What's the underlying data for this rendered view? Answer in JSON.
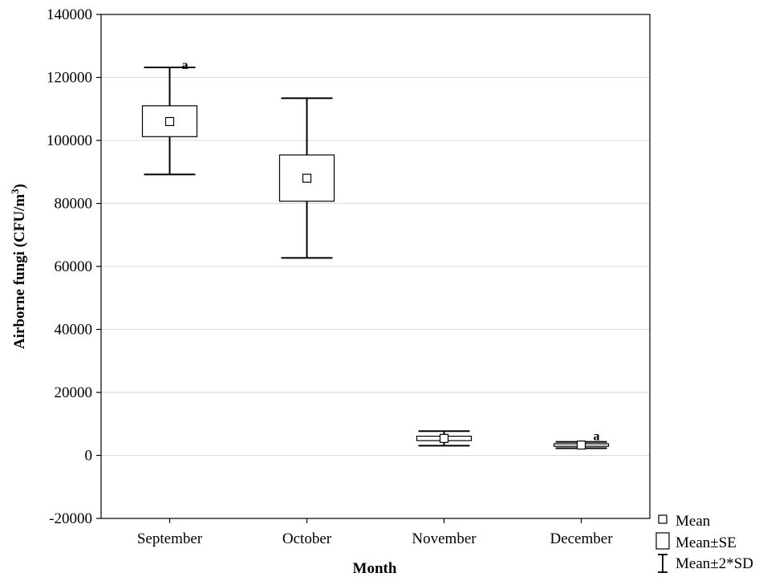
{
  "chart_data": {
    "type": "box",
    "xlabel": "Month",
    "ylabel": "Airborne fungi (CFU/m",
    "ylabel_sup": "3",
    "ylabel_end": ")",
    "ylim": [
      -20000,
      140000
    ],
    "yticks": [
      -20000,
      0,
      20000,
      40000,
      60000,
      80000,
      100000,
      120000,
      140000
    ],
    "ytick_labels": [
      "-20000",
      "0",
      "20000",
      "40000",
      "60000",
      "80000",
      "100000",
      "120000",
      "140000"
    ],
    "grid": "horizontal",
    "categories": [
      "September",
      "October",
      "November",
      "December"
    ],
    "series": [
      {
        "category": "September",
        "mean": 106000,
        "se_low": 101200,
        "se_high": 111000,
        "sd2_low": 89200,
        "sd2_high": 123200,
        "annotation": "a"
      },
      {
        "category": "October",
        "mean": 88000,
        "se_low": 80700,
        "se_high": 95400,
        "sd2_low": 62700,
        "sd2_high": 113400,
        "annotation": ""
      },
      {
        "category": "November",
        "mean": 5400,
        "se_low": 4700,
        "se_high": 6100,
        "sd2_low": 3100,
        "sd2_high": 7700,
        "annotation": ""
      },
      {
        "category": "December",
        "mean": 3300,
        "se_low": 2900,
        "se_high": 3700,
        "sd2_low": 2300,
        "sd2_high": 4300,
        "annotation": "a"
      }
    ],
    "legend": {
      "placement": "bottom-right",
      "items": [
        {
          "symbol": "mean",
          "label": "Mean"
        },
        {
          "symbol": "box",
          "label": "Mean±SE"
        },
        {
          "symbol": "whisker",
          "label": "Mean±2*SD"
        }
      ]
    }
  }
}
